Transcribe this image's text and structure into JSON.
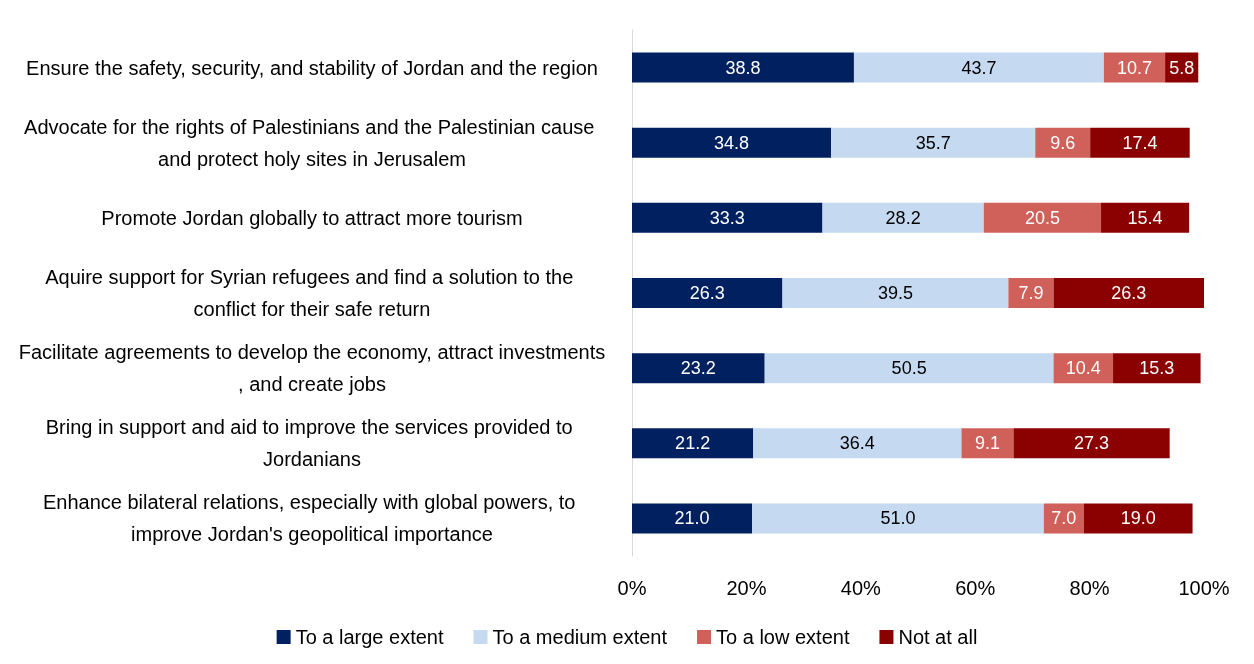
{
  "chart_data": {
    "type": "bar",
    "orientation": "horizontal",
    "stacked": true,
    "legend": "bottom",
    "grid": false,
    "categories": [
      "Ensure the safety, security, and stability of Jordan and the region",
      "Advocate for the rights of Palestinians and the Palestinian cause and protect holy sites in Jerusalem",
      "Promote Jordan globally to attract more tourism",
      "Aquire support for Syrian refugees and find a solution to the conflict for their safe return",
      "Facilitate agreements to develop the economy, attract investments, and create jobs",
      "Bring in support and aid to improve the services provided to Jordanians",
      "Enhance bilateral relations, especially with global powers, to improve Jordan's geopolitical importance"
    ],
    "xlim": [
      0,
      100
    ],
    "xticks": [
      {
        "value": 0,
        "label": "0%"
      },
      {
        "value": 20,
        "label": "20%"
      },
      {
        "value": 40,
        "label": "40%"
      },
      {
        "value": 60,
        "label": "60%"
      },
      {
        "value": 80,
        "label": "80%"
      },
      {
        "value": 100,
        "label": "100%"
      }
    ],
    "series": [
      {
        "name": "To a large extent",
        "color": "#002060",
        "values": [
          38.8,
          34.8,
          33.3,
          26.3,
          23.2,
          21.2,
          21.0
        ],
        "value_labels": [
          "38.8",
          "34.8",
          "33.3",
          "26.3",
          "23.2",
          "21.2",
          "21.0"
        ]
      },
      {
        "name": "To a medium extent",
        "color": "#c5d9f1",
        "values": [
          43.7,
          35.7,
          28.2,
          39.5,
          50.5,
          36.4,
          51.0
        ],
        "value_labels": [
          "43.7",
          "35.7",
          "28.2",
          "39.5",
          "50.5",
          "36.4",
          "51.0"
        ]
      },
      {
        "name": "To a low extent",
        "color": "#d0605a",
        "values": [
          10.7,
          9.6,
          20.5,
          7.9,
          10.4,
          9.1,
          7.0
        ],
        "value_labels": [
          "10.7",
          "9.6",
          "20.5",
          "7.9",
          "10.4",
          "9.1",
          "7.0"
        ]
      },
      {
        "name": "Not at all",
        "color": "#8b0000",
        "values": [
          5.8,
          17.4,
          15.4,
          26.3,
          15.3,
          27.3,
          19.0
        ],
        "value_labels": [
          "5.8",
          "17.4",
          "15.4",
          "26.3",
          "15.3",
          "27.3",
          "19.0"
        ]
      }
    ]
  }
}
